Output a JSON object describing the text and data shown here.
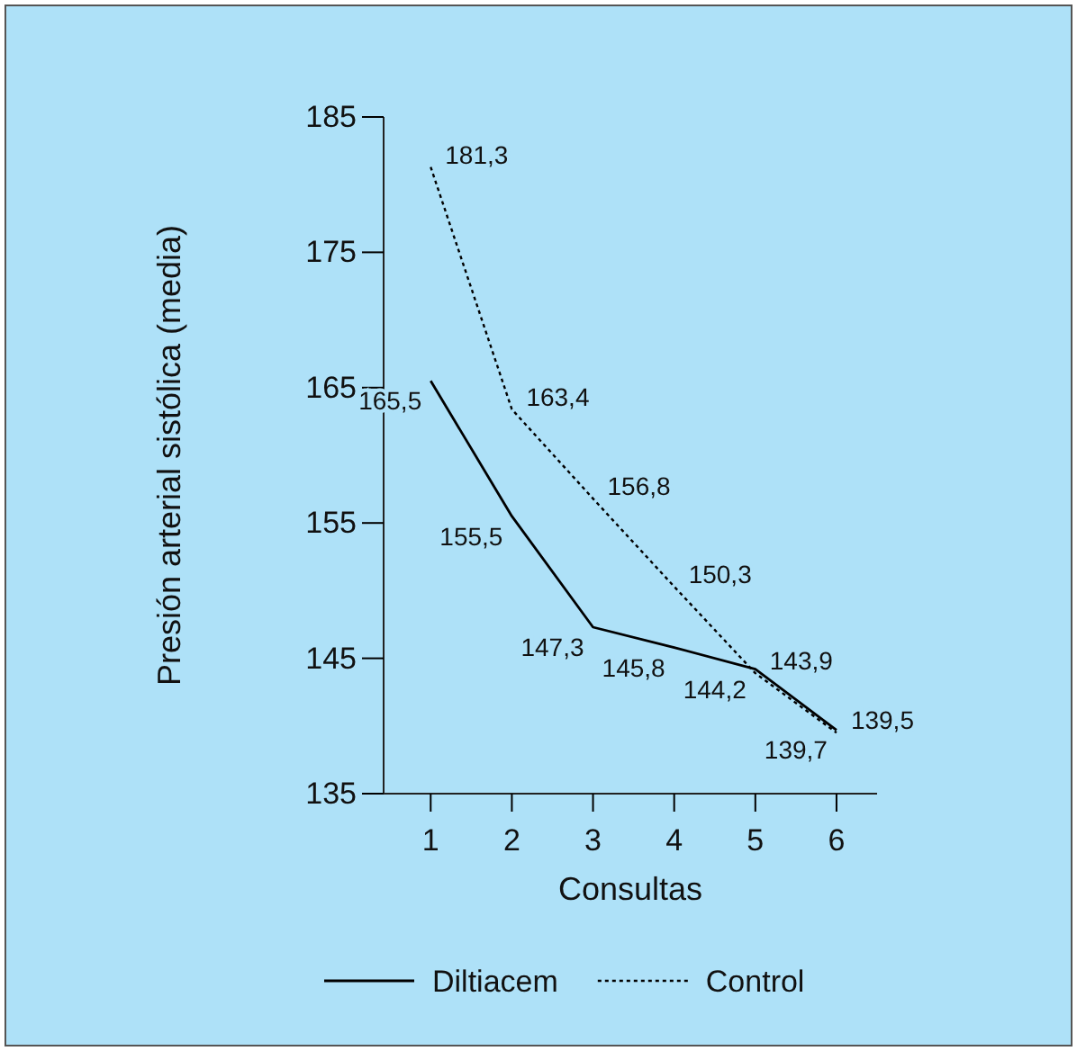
{
  "chart_data": {
    "type": "line",
    "xlabel": "Consultas",
    "ylabel": "Presión arterial sistólica (media)",
    "x": [
      1,
      2,
      3,
      4,
      5,
      6
    ],
    "xlim": [
      0.42,
      6.5
    ],
    "xticks": [
      1,
      2,
      3,
      4,
      5,
      6
    ],
    "ylim": [
      135,
      185
    ],
    "yticks": [
      135,
      145,
      155,
      165,
      175,
      185
    ],
    "series": [
      {
        "name": "Diltiacem",
        "color": "#000000",
        "line_style": "solid",
        "values": [
          165.5,
          155.5,
          147.3,
          145.8,
          144.2,
          139.7
        ],
        "value_labels": [
          "165,5",
          "155,5",
          "147,3",
          "145,8",
          "144,2",
          "139,7"
        ]
      },
      {
        "name": "Control",
        "color": "#000000",
        "line_style": "dotted",
        "values": [
          181.3,
          163.4,
          156.8,
          150.3,
          143.9,
          139.5
        ],
        "value_labels": [
          "181,3",
          "163,4",
          "156,8",
          "150,3",
          "143,9",
          "139,5"
        ]
      }
    ],
    "grid": false,
    "legend": "bottom"
  }
}
